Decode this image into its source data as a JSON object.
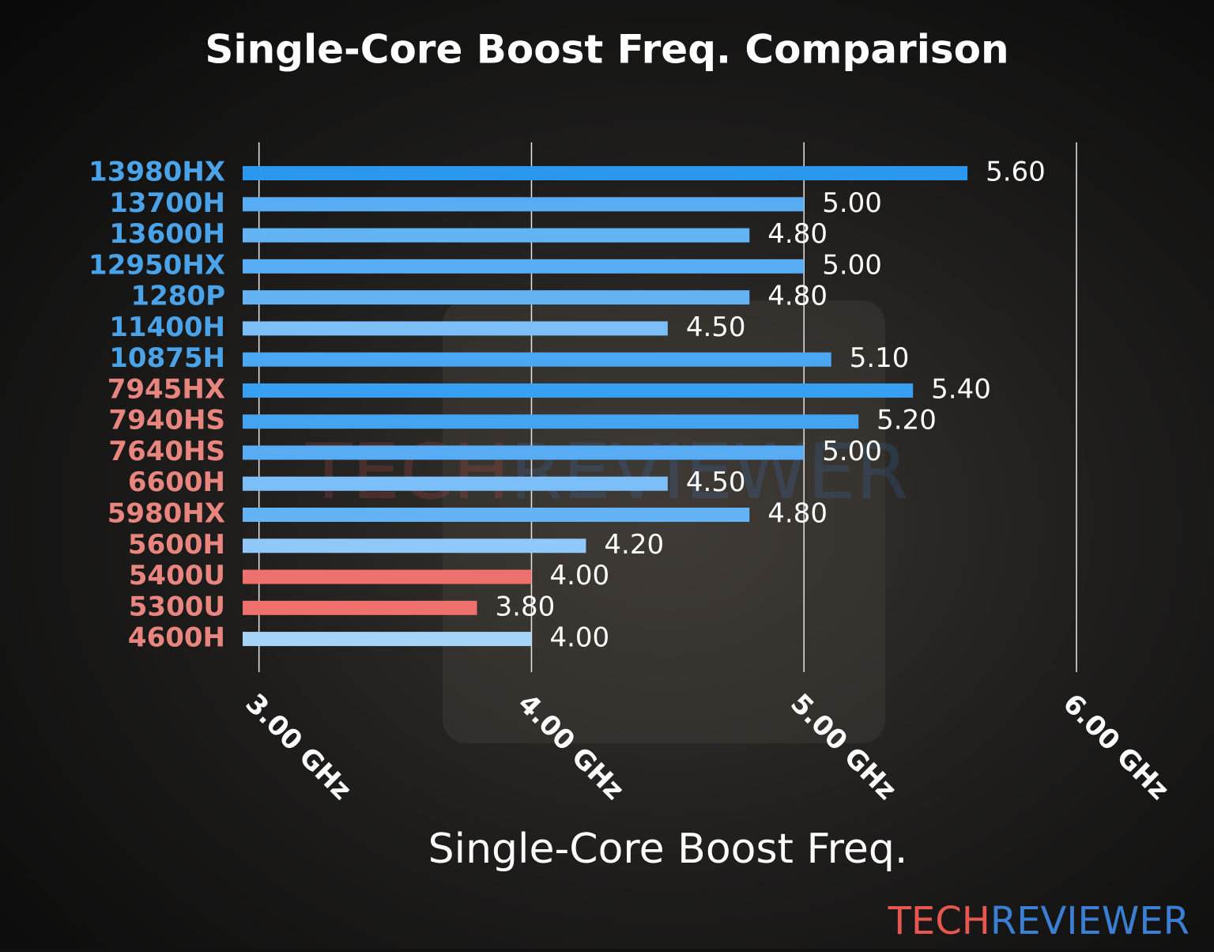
{
  "chart_data": {
    "type": "bar",
    "orientation": "horizontal",
    "title": "Single-Core Boost Freq. Comparison",
    "x_label": "Single-Core Boost Freq.",
    "categories": [
      "13980HX",
      "13700H",
      "13600H",
      "12950HX",
      "1280P",
      "11400H",
      "10875H",
      "7945HX",
      "7940HS",
      "7640HS",
      "6600H",
      "5980HX",
      "5600H",
      "5400U",
      "5300U",
      "4600H"
    ],
    "values": [
      5.6,
      5.0,
      4.8,
      5.0,
      4.8,
      4.5,
      5.1,
      5.4,
      5.2,
      5.0,
      4.5,
      4.8,
      4.2,
      4.0,
      3.8,
      4.0
    ],
    "value_labels": [
      "5.60",
      "5.00",
      "4.80",
      "5.00",
      "4.80",
      "4.50",
      "5.10",
      "5.40",
      "5.20",
      "5.00",
      "4.50",
      "4.80",
      "4.20",
      "4.00",
      "3.80",
      "4.00"
    ],
    "colors": [
      "#2b98ef",
      "#58acf4",
      "#63b3f5",
      "#58acf4",
      "#63b3f5",
      "#7cbef8",
      "#4ca7f2",
      "#38a0f2",
      "#44a4f2",
      "#58acf4",
      "#7cbef8",
      "#63b3f5",
      "#90c9f9",
      "#ef716d",
      "#ef716d",
      "#a6d3f8"
    ],
    "label_colors": [
      "#4aa3e8",
      "#4aa3e8",
      "#4aa3e8",
      "#4aa3e8",
      "#4aa3e8",
      "#4aa3e8",
      "#4aa3e8",
      "#e8857f",
      "#e8857f",
      "#e8857f",
      "#e8857f",
      "#e8857f",
      "#e8857f",
      "#e8857f",
      "#e8857f",
      "#e8857f"
    ],
    "xlim": [
      2.94,
      6.0
    ],
    "xticks": [
      {
        "value": 3,
        "label": "3.00 GHz"
      },
      {
        "value": 4,
        "label": "4.00 GHz"
      },
      {
        "value": 5,
        "label": "5.00 GHz"
      },
      {
        "value": 6,
        "label": "6.00 GHz"
      }
    ],
    "grid": true
  },
  "brand": {
    "part1": "TECH",
    "part2": "REVIEWER"
  }
}
